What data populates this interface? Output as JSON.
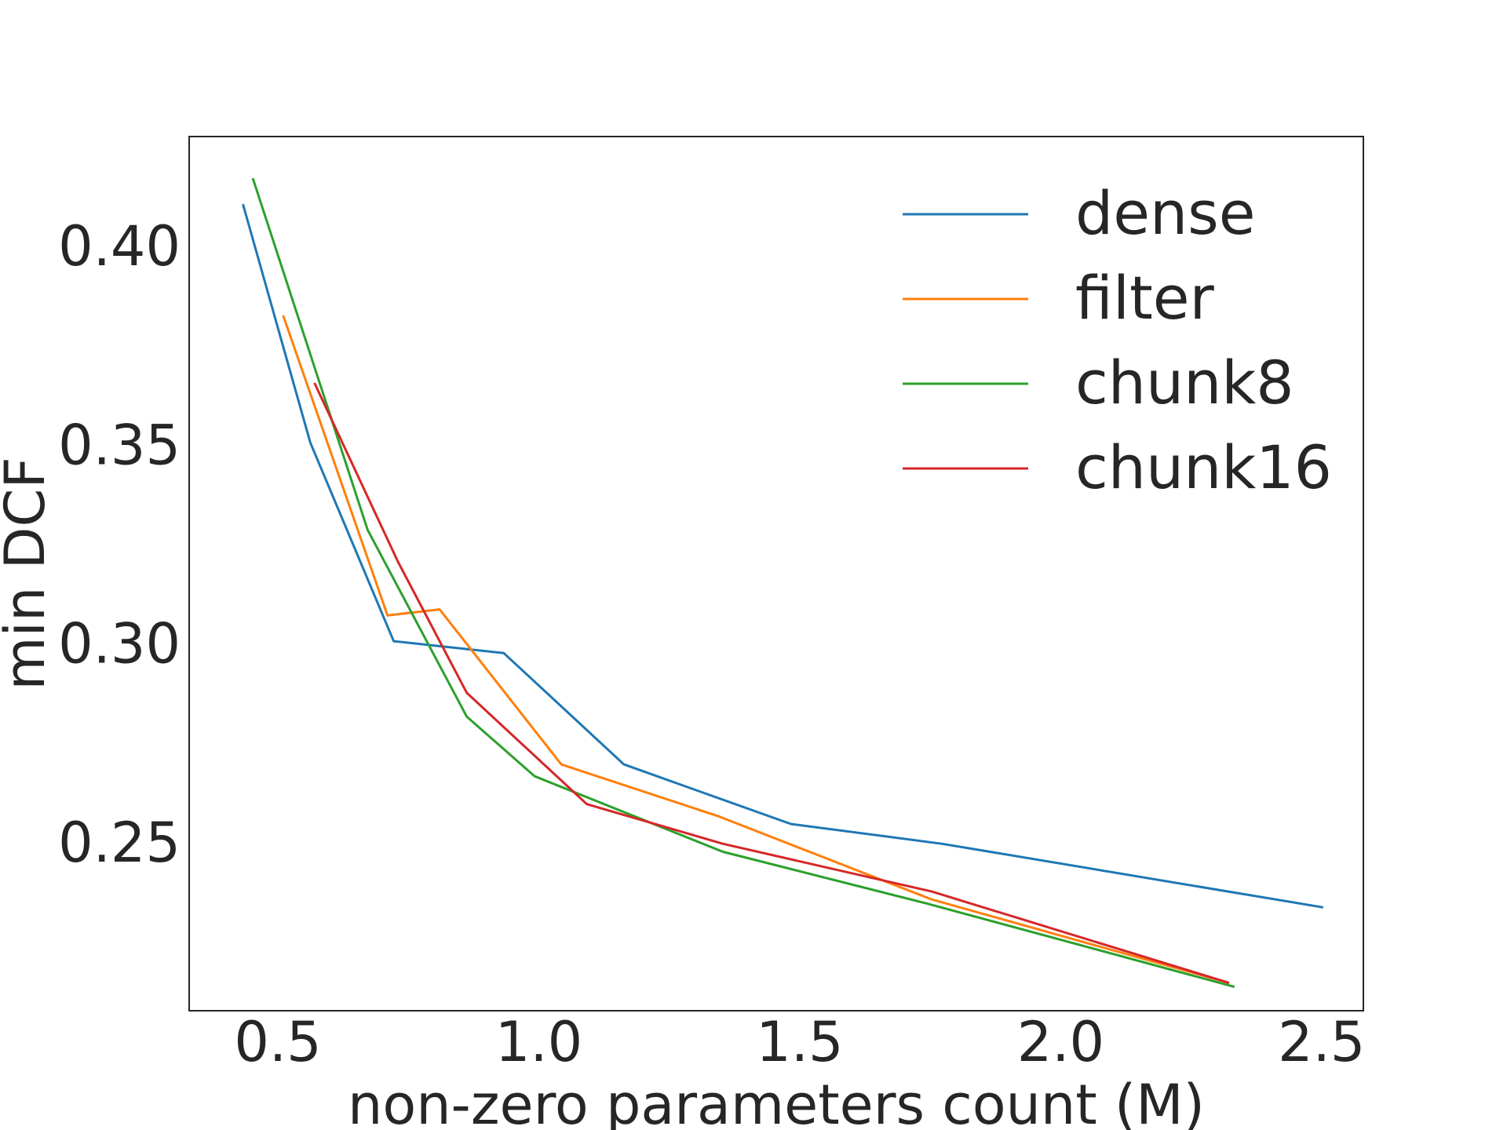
{
  "chart_data": {
    "type": "line",
    "xlabel": "non-zero parameters count (M)",
    "ylabel": "min DCF",
    "xlim": [
      0.33,
      2.58
    ],
    "ylim": [
      0.2075,
      0.4275
    ],
    "xticks": [
      0.5,
      1.0,
      1.5,
      2.0,
      2.5
    ],
    "xtick_labels": [
      "0.5",
      "1.0",
      "1.5",
      "2.0",
      "2.5"
    ],
    "yticks": [
      0.25,
      0.3,
      0.35,
      0.4
    ],
    "ytick_labels": [
      "0.25",
      "0.30",
      "0.35",
      "0.40"
    ],
    "grid": false,
    "legend_position": "top-right",
    "series": [
      {
        "name": "dense",
        "color": "#1f77b4",
        "x": [
          0.433,
          0.562,
          0.722,
          0.933,
          1.163,
          1.483,
          1.773,
          2.503
        ],
        "y": [
          0.4105,
          0.3505,
          0.3005,
          0.2975,
          0.2695,
          0.2545,
          0.2495,
          0.2335
        ]
      },
      {
        "name": "filter",
        "color": "#ff7f0e",
        "x": [
          0.51,
          0.71,
          0.81,
          1.043,
          1.343,
          1.753,
          2.323
        ],
        "y": [
          0.3825,
          0.307,
          0.3085,
          0.2695,
          0.2565,
          0.2355,
          0.2145
        ]
      },
      {
        "name": "chunk8",
        "color": "#2ca02c",
        "x": [
          0.452,
          0.672,
          0.862,
          0.992,
          1.353,
          1.743,
          2.333
        ],
        "y": [
          0.417,
          0.3285,
          0.2815,
          0.2665,
          0.2475,
          0.2345,
          0.2135
        ]
      },
      {
        "name": "chunk16",
        "color": "#d62728",
        "x": [
          0.57,
          0.73,
          0.862,
          1.092,
          1.353,
          1.753,
          2.323
        ],
        "y": [
          0.3655,
          0.3205,
          0.2875,
          0.2595,
          0.2495,
          0.2375,
          0.2145
        ]
      }
    ]
  }
}
